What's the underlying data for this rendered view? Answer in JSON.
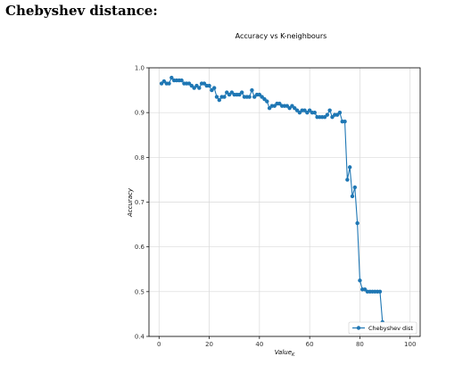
{
  "heading": "Chebyshev distance:",
  "colors": {
    "series": "#1f77b4",
    "grid": "#d9d9d9",
    "axis": "#000000"
  },
  "chart_data": {
    "type": "line",
    "title": "Accuracy vs K-neighbours",
    "xlabel": "Value",
    "xlabel_subscript": "K",
    "ylabel": "Accuracy",
    "xlim": [
      -4,
      104
    ],
    "ylim": [
      0.4,
      1.0
    ],
    "xticks": [
      0,
      20,
      40,
      60,
      80,
      100
    ],
    "yticks": [
      0.4,
      0.5,
      0.6,
      0.7,
      0.8,
      0.9,
      1.0
    ],
    "xtick_labels": [
      "0",
      "20",
      "40",
      "60",
      "80",
      "100"
    ],
    "ytick_labels": [
      "0.4",
      "0.5",
      "0.6",
      "0.7",
      "0.8",
      "0.9",
      "1.0"
    ],
    "grid": true,
    "legend_position": "bottom-right",
    "series": [
      {
        "name": "Chebyshev dist",
        "x": [
          1,
          2,
          3,
          4,
          5,
          6,
          7,
          8,
          9,
          10,
          11,
          12,
          13,
          14,
          15,
          16,
          17,
          18,
          19,
          20,
          21,
          22,
          23,
          24,
          25,
          26,
          27,
          28,
          29,
          30,
          31,
          32,
          33,
          34,
          35,
          36,
          37,
          38,
          39,
          40,
          41,
          42,
          43,
          44,
          45,
          46,
          47,
          48,
          49,
          50,
          51,
          52,
          53,
          54,
          55,
          56,
          57,
          58,
          59,
          60,
          61,
          62,
          63,
          64,
          65,
          66,
          67,
          68,
          69,
          70,
          71,
          72,
          73,
          74,
          75,
          76,
          77,
          78,
          79,
          80,
          81,
          82,
          83,
          84,
          85,
          86,
          87,
          88,
          89
        ],
        "y": [
          0.965,
          0.97,
          0.965,
          0.965,
          0.978,
          0.972,
          0.972,
          0.972,
          0.972,
          0.965,
          0.965,
          0.965,
          0.96,
          0.955,
          0.96,
          0.955,
          0.965,
          0.965,
          0.96,
          0.96,
          0.95,
          0.955,
          0.935,
          0.928,
          0.935,
          0.935,
          0.945,
          0.94,
          0.945,
          0.94,
          0.94,
          0.94,
          0.945,
          0.935,
          0.935,
          0.935,
          0.95,
          0.935,
          0.94,
          0.94,
          0.935,
          0.93,
          0.925,
          0.91,
          0.915,
          0.915,
          0.92,
          0.92,
          0.915,
          0.915,
          0.915,
          0.91,
          0.915,
          0.91,
          0.905,
          0.9,
          0.905,
          0.905,
          0.9,
          0.905,
          0.9,
          0.9,
          0.89,
          0.89,
          0.89,
          0.89,
          0.895,
          0.905,
          0.89,
          0.895,
          0.895,
          0.9,
          0.88,
          0.88,
          0.75,
          0.778,
          0.713,
          0.733,
          0.653,
          0.525,
          0.505,
          0.505,
          0.5,
          0.5,
          0.5,
          0.5,
          0.5,
          0.5,
          0.432
        ]
      }
    ]
  }
}
